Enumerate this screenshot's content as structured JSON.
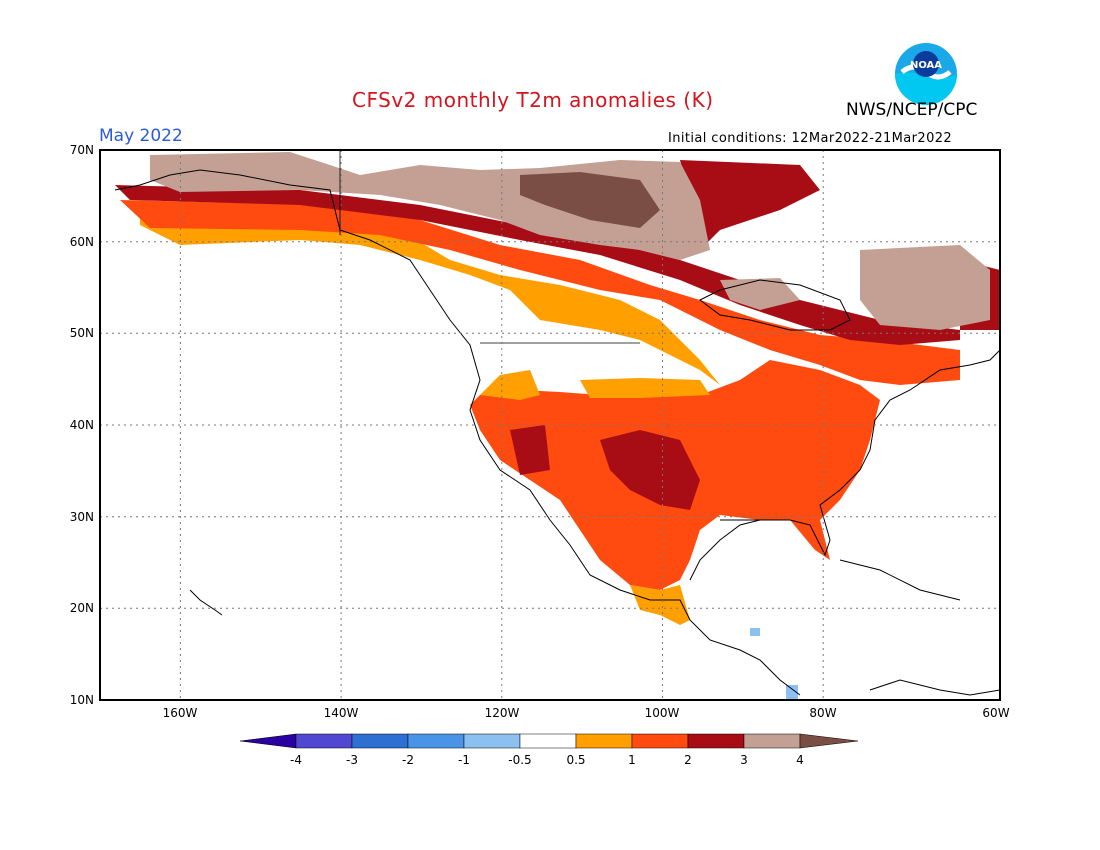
{
  "title": "CFSv2 monthly T2m anomalies (K)",
  "organization": "NWS/NCEP/CPC",
  "logo_text": "NOAA",
  "target_month": "May 2022",
  "initial_conditions": "Initial conditions: 12Mar2022-21Mar2022",
  "map": {
    "lon_range": [
      -172,
      -60
    ],
    "lat_range": [
      10,
      70
    ],
    "lat_labels": [
      "70N",
      "60N",
      "50N",
      "40N",
      "30N",
      "20N",
      "10N"
    ],
    "lon_labels": [
      "160W",
      "140W",
      "120W",
      "100W",
      "80W",
      "60W"
    ],
    "grid": true
  },
  "colorbar": {
    "tick_labels": [
      "-4",
      "-3",
      "-2",
      "-1",
      "-0.5",
      "0.5",
      "1",
      "2",
      "3",
      "4"
    ],
    "colors": [
      "#2a00a0",
      "#5048d0",
      "#2e6fd2",
      "#4a94e8",
      "#8cc0f0",
      "#ffffff",
      "#ffa000",
      "#ff4a10",
      "#a80c14",
      "#c4a094",
      "#7a4e44"
    ]
  },
  "anomaly_categories": [
    {
      "range": "-4 to -3",
      "color": "#5048d0"
    },
    {
      "range": "-3 to -2",
      "color": "#2e6fd2"
    },
    {
      "range": "-2 to -1",
      "color": "#4a94e8"
    },
    {
      "range": "-1 to -0.5",
      "color": "#8cc0f0"
    },
    {
      "range": "-0.5 to 0.5",
      "color": "#ffffff"
    },
    {
      "range": "0.5 to 1",
      "color": "#ffa000"
    },
    {
      "range": "1 to 2",
      "color": "#ff4a10"
    },
    {
      "range": "2 to 3",
      "color": "#a80c14"
    },
    {
      "range": "3 to 4",
      "color": "#c4a094"
    },
    {
      "range": "> 4",
      "color": "#7a4e44"
    }
  ]
}
